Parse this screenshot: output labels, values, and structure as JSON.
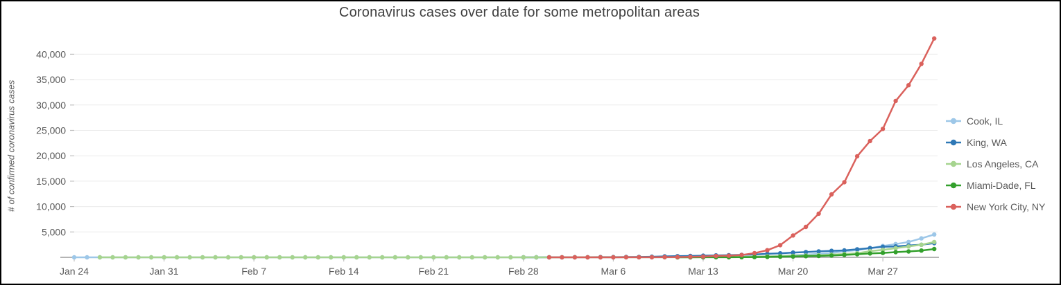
{
  "title": "Coronavirus cases over date for some metropolitan areas",
  "chart_data": {
    "type": "line",
    "title": "Coronavirus cases over date for some metropolitan areas",
    "xlabel": "",
    "ylabel": "# of confirmed coronavirus cases",
    "ylim": [
      0,
      44000
    ],
    "grid": true,
    "legend_position": "right",
    "y_ticks": [
      {
        "value": 5000,
        "label": "5,000"
      },
      {
        "value": 10000,
        "label": "10,000"
      },
      {
        "value": 15000,
        "label": "15,000"
      },
      {
        "value": 20000,
        "label": "20,000"
      },
      {
        "value": 25000,
        "label": "25,000"
      },
      {
        "value": 30000,
        "label": "30,000"
      },
      {
        "value": 35000,
        "label": "35,000"
      },
      {
        "value": 40000,
        "label": "40,000"
      }
    ],
    "x_ticks": [
      {
        "day": 0,
        "label": "Jan 24"
      },
      {
        "day": 7,
        "label": "Jan 31"
      },
      {
        "day": 14,
        "label": "Feb 7"
      },
      {
        "day": 21,
        "label": "Feb 14"
      },
      {
        "day": 28,
        "label": "Feb 21"
      },
      {
        "day": 35,
        "label": "Feb 28"
      },
      {
        "day": 42,
        "label": "Mar 6"
      },
      {
        "day": 49,
        "label": "Mar 13"
      },
      {
        "day": 56,
        "label": "Mar 20"
      },
      {
        "day": 63,
        "label": "Mar 27"
      }
    ],
    "dates": [
      "Jan 24",
      "Jan 25",
      "Jan 26",
      "Jan 27",
      "Jan 28",
      "Jan 29",
      "Jan 30",
      "Jan 31",
      "Feb 1",
      "Feb 2",
      "Feb 3",
      "Feb 4",
      "Feb 5",
      "Feb 6",
      "Feb 7",
      "Feb 8",
      "Feb 9",
      "Feb 10",
      "Feb 11",
      "Feb 12",
      "Feb 13",
      "Feb 14",
      "Feb 15",
      "Feb 16",
      "Feb 17",
      "Feb 18",
      "Feb 19",
      "Feb 20",
      "Feb 21",
      "Feb 22",
      "Feb 23",
      "Feb 24",
      "Feb 25",
      "Feb 26",
      "Feb 27",
      "Feb 28",
      "Feb 29",
      "Mar 1",
      "Mar 2",
      "Mar 3",
      "Mar 4",
      "Mar 5",
      "Mar 6",
      "Mar 7",
      "Mar 8",
      "Mar 9",
      "Mar 10",
      "Mar 11",
      "Mar 12",
      "Mar 13",
      "Mar 14",
      "Mar 15",
      "Mar 16",
      "Mar 17",
      "Mar 18",
      "Mar 19",
      "Mar 20",
      "Mar 21",
      "Mar 22",
      "Mar 23",
      "Mar 24",
      "Mar 25",
      "Mar 26",
      "Mar 27",
      "Mar 28",
      "Mar 29",
      "Mar 30",
      "Mar 31"
    ],
    "series": [
      {
        "name": "Cook, IL",
        "color": "#9DC7E8",
        "values": [
          1,
          1,
          1,
          1,
          1,
          1,
          2,
          2,
          2,
          2,
          2,
          2,
          2,
          2,
          2,
          2,
          2,
          2,
          2,
          2,
          2,
          2,
          2,
          2,
          2,
          2,
          2,
          2,
          2,
          2,
          2,
          2,
          2,
          2,
          2,
          2,
          2,
          2,
          3,
          4,
          4,
          5,
          6,
          7,
          9,
          11,
          13,
          19,
          25,
          32,
          46,
          64,
          82,
          107,
          178,
          278,
          409,
          548,
          688,
          865,
          1194,
          1418,
          1794,
          2239,
          2613,
          3027,
          3727,
          4496
        ]
      },
      {
        "name": "King, WA",
        "color": "#2E78B6",
        "values": [
          null,
          null,
          null,
          null,
          null,
          null,
          null,
          null,
          null,
          null,
          null,
          null,
          null,
          null,
          null,
          null,
          null,
          null,
          null,
          null,
          null,
          null,
          null,
          null,
          null,
          null,
          null,
          null,
          null,
          null,
          null,
          null,
          null,
          null,
          null,
          1,
          6,
          10,
          14,
          21,
          31,
          51,
          58,
          71,
          83,
          116,
          190,
          234,
          270,
          328,
          388,
          420,
          488,
          562,
          693,
          793,
          934,
          1040,
          1170,
          1277,
          1359,
          1577,
          1830,
          2077,
          2159,
          2330,
          2480,
          2787
        ]
      },
      {
        "name": "Los Angeles, CA",
        "color": "#A6D48F",
        "values": [
          null,
          null,
          1,
          1,
          1,
          1,
          1,
          1,
          1,
          1,
          1,
          1,
          1,
          1,
          1,
          1,
          1,
          1,
          1,
          1,
          1,
          1,
          1,
          1,
          1,
          1,
          1,
          1,
          1,
          1,
          1,
          1,
          1,
          1,
          1,
          1,
          1,
          1,
          1,
          7,
          11,
          13,
          13,
          14,
          14,
          16,
          17,
          27,
          32,
          40,
          53,
          69,
          94,
          144,
          190,
          231,
          292,
          351,
          409,
          536,
          662,
          799,
          1216,
          1465,
          1804,
          2136,
          2474,
          3011
        ]
      },
      {
        "name": "Miami-Dade, FL",
        "color": "#33A02C",
        "values": [
          null,
          null,
          null,
          null,
          null,
          null,
          null,
          null,
          null,
          null,
          null,
          null,
          null,
          null,
          null,
          null,
          null,
          null,
          null,
          null,
          null,
          null,
          null,
          null,
          null,
          null,
          null,
          null,
          null,
          null,
          null,
          null,
          null,
          null,
          null,
          null,
          null,
          null,
          null,
          null,
          null,
          null,
          null,
          null,
          null,
          null,
          null,
          2,
          4,
          8,
          11,
          15,
          33,
          59,
          85,
          124,
          169,
          227,
          278,
          356,
          474,
          595,
          763,
          869,
          1021,
          1160,
          1337,
          1637
        ]
      },
      {
        "name": "New York City, NY",
        "color": "#DA615C",
        "values": [
          null,
          null,
          null,
          null,
          null,
          null,
          null,
          null,
          null,
          null,
          null,
          null,
          null,
          null,
          null,
          null,
          null,
          null,
          null,
          null,
          null,
          null,
          null,
          null,
          null,
          null,
          null,
          null,
          null,
          null,
          null,
          null,
          null,
          null,
          null,
          null,
          null,
          1,
          1,
          2,
          2,
          4,
          5,
          12,
          14,
          20,
          37,
          53,
          95,
          154,
          269,
          329,
          464,
          814,
          1400,
          2400,
          4300,
          6000,
          8600,
          12400,
          14800,
          19900,
          22900,
          25300,
          30800,
          33900,
          38100,
          43100
        ]
      }
    ]
  },
  "style_colors": {
    "title_text": "#404040",
    "axis_label_text": "#595959",
    "gridline": "#EBEBEB",
    "axis_line": "#9B9B9B",
    "tick_mark": "#BFBFBF"
  }
}
